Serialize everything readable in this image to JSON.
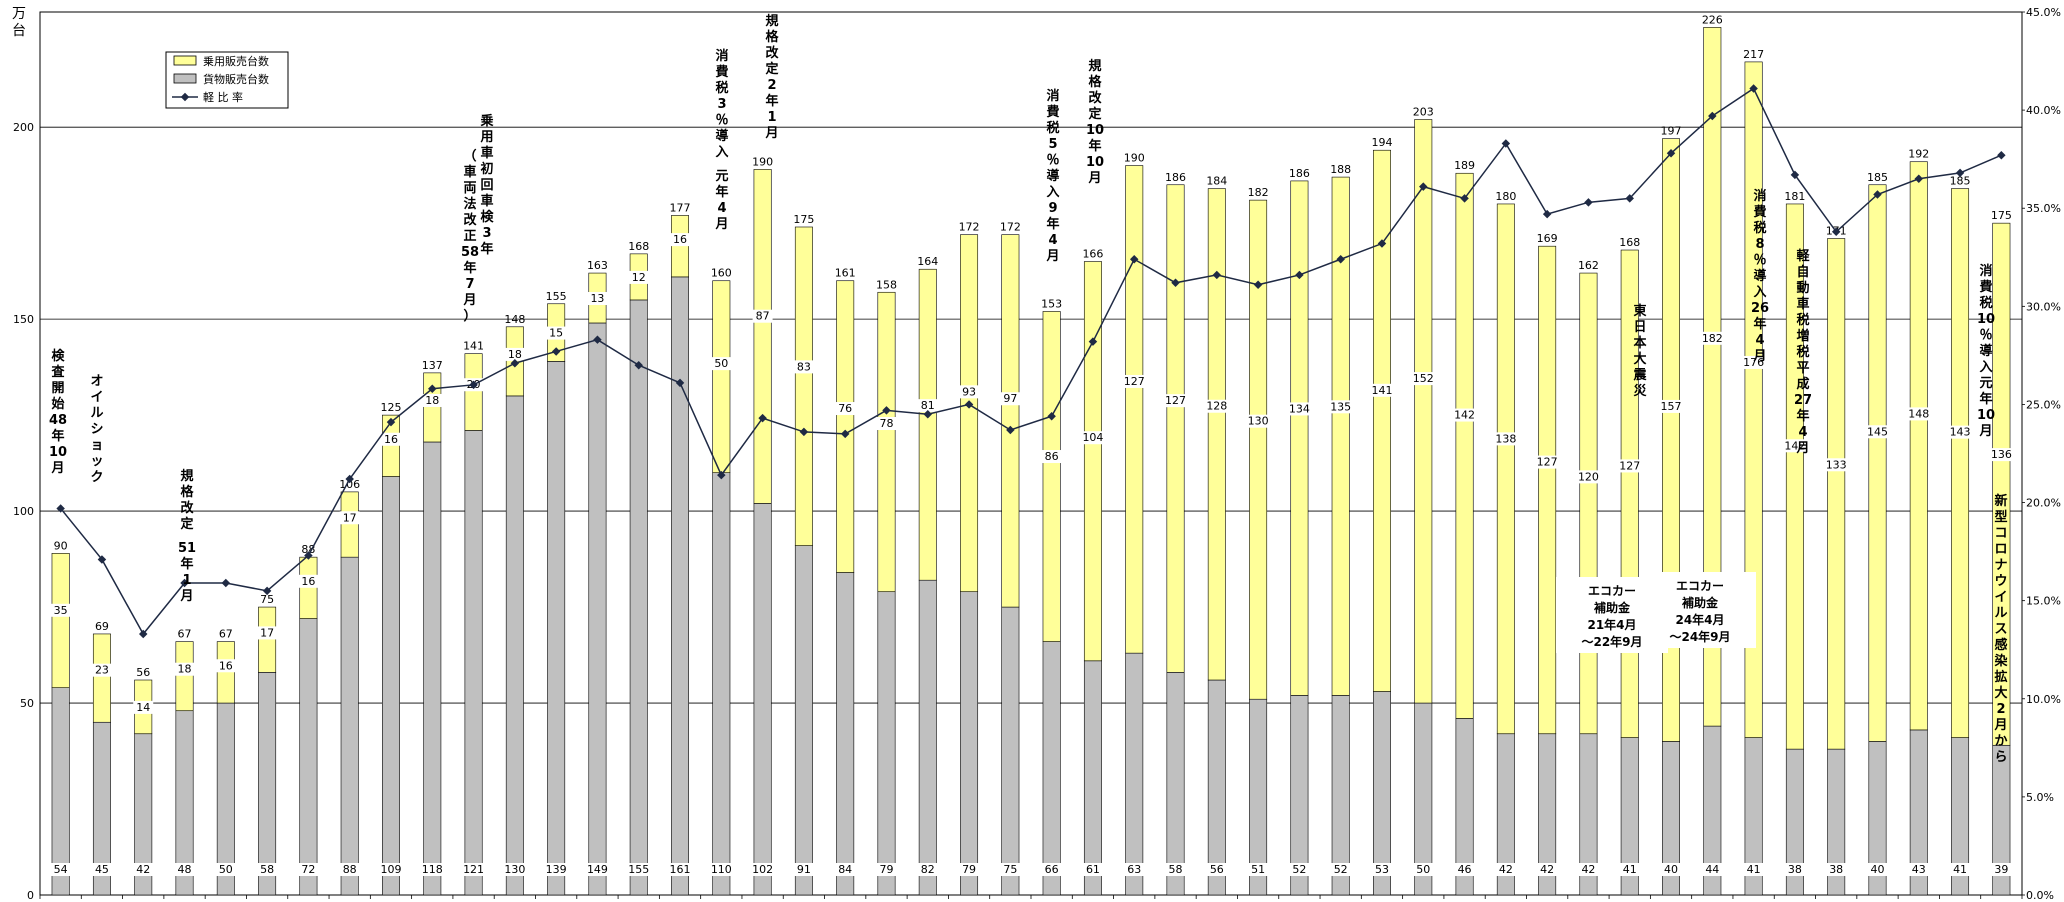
{
  "chart_data": {
    "type": "bar",
    "stacked": true,
    "unit_label": "万台",
    "ylim": [
      0,
      230
    ],
    "y_ticks": [
      0,
      50,
      100,
      150,
      200
    ],
    "y2lim": [
      0,
      45
    ],
    "y2_ticks": [
      "0.0%",
      "5.0%",
      "10.0%",
      "15.0%",
      "20.0%",
      "25.0%",
      "30.0%",
      "35.0%",
      "40.0%",
      "45.0%"
    ],
    "grid": true,
    "legend_position": "top-left",
    "colors": {
      "passenger": "#ffff99",
      "cargo": "#c0c0c0",
      "ratio_line": "#1f2a44"
    },
    "series": [
      {
        "name": "乗用販売台数",
        "values": [
          35,
          23,
          14,
          18,
          16,
          17,
          16,
          17,
          16,
          18,
          20,
          18,
          15,
          13,
          12,
          16,
          50,
          87,
          83,
          76,
          78,
          81,
          93,
          97,
          86,
          104,
          127,
          127,
          128,
          130,
          134,
          135,
          141,
          152,
          142,
          138,
          127,
          120,
          127,
          157,
          182,
          176,
          142,
          133,
          145,
          148,
          143,
          136
        ]
      },
      {
        "name": "貨物販売台数",
        "values": [
          54,
          45,
          42,
          48,
          50,
          58,
          72,
          88,
          109,
          118,
          121,
          130,
          139,
          149,
          155,
          161,
          110,
          102,
          91,
          84,
          79,
          82,
          79,
          75,
          66,
          61,
          63,
          58,
          56,
          51,
          52,
          52,
          53,
          50,
          46,
          42,
          42,
          42,
          41,
          40,
          44,
          41,
          38,
          38,
          40,
          43,
          41,
          39
        ]
      },
      {
        "name": "軽 比 率",
        "type": "line",
        "axis": "right",
        "values": [
          19.7,
          17.1,
          13.3,
          15.9,
          15.9,
          15.5,
          17.3,
          21.2,
          24.1,
          25.8,
          26.0,
          27.1,
          27.7,
          28.3,
          27.0,
          26.1,
          21.4,
          24.3,
          23.6,
          23.5,
          24.7,
          24.5,
          25.0,
          23.7,
          24.4,
          28.2,
          32.4,
          31.2,
          31.6,
          31.1,
          31.6,
          32.4,
          33.2,
          36.1,
          35.5,
          38.3,
          34.7,
          35.3,
          35.5,
          37.8,
          39.7,
          41.1,
          36.7,
          33.8,
          35.7,
          36.5,
          36.8,
          37.7
        ]
      }
    ],
    "totals": [
      90,
      69,
      56,
      67,
      67,
      75,
      88,
      106,
      125,
      137,
      141,
      148,
      155,
      163,
      168,
      177,
      160,
      190,
      175,
      161,
      158,
      164,
      172,
      172,
      153,
      166,
      190,
      186,
      184,
      182,
      186,
      188,
      194,
      203,
      189,
      180,
      169,
      162,
      168,
      197,
      226,
      217,
      181,
      171,
      185,
      192,
      185,
      175
    ],
    "annotations": [
      {
        "idx": 0,
        "lines": [
          "検",
          "査",
          "開",
          "始",
          "48",
          "年",
          "10",
          "月"
        ]
      },
      {
        "idx": 1,
        "lines": [
          "オ",
          "イ",
          "ル",
          "シ",
          "ョ",
          "ッ",
          "ク"
        ]
      },
      {
        "idx": 3,
        "lines": [
          "規",
          "格",
          "改",
          "定",
          "",
          "51",
          "年",
          "1",
          "月"
        ]
      },
      {
        "idx": 10,
        "lines": [
          "乗",
          "用",
          "車",
          "初",
          "回",
          "車",
          "検",
          "3",
          "年"
        ]
      },
      {
        "idx": 9,
        "lines": [
          "（",
          "車",
          "両",
          "法",
          "改",
          "正",
          "58",
          "年",
          "7",
          "月",
          "）"
        ]
      },
      {
        "idx": 16,
        "lines": [
          "消",
          "費",
          "税",
          "3",
          "％",
          "導",
          "入",
          "",
          "元",
          "年",
          "4",
          "月"
        ]
      },
      {
        "idx": 17,
        "lines": [
          "規",
          "格",
          "改",
          "定",
          "2",
          "年",
          "1",
          "月"
        ]
      },
      {
        "idx": 24,
        "lines": [
          "消",
          "費",
          "税",
          "5",
          "％",
          "導",
          "入",
          "9",
          "年",
          "4",
          "月"
        ]
      },
      {
        "idx": 25,
        "lines": [
          "規",
          "格",
          "改",
          "定",
          "10",
          "年",
          "10",
          "月"
        ]
      },
      {
        "idx": 38,
        "lines": [
          "東",
          "日",
          "本",
          "大",
          "震",
          "災"
        ]
      },
      {
        "idx": 41,
        "lines": [
          "消",
          "費",
          "税",
          "8",
          "％",
          "導",
          "入",
          "26",
          "年",
          "4",
          "月"
        ]
      },
      {
        "idx": 42,
        "lines": [
          "軽",
          "自",
          "動",
          "車",
          "税",
          "増",
          "税",
          "平",
          "成",
          "27",
          "年",
          "4",
          "月"
        ]
      },
      {
        "idx": 46,
        "lines": [
          "消",
          "費",
          "税",
          "10",
          "％",
          "導",
          "入",
          "元",
          "年",
          "10",
          "月"
        ]
      },
      {
        "idx": 47,
        "lines": [
          "新",
          "型",
          "コ",
          "ロ",
          "ナ",
          "ウ",
          "イ",
          "ル",
          "ス",
          "感",
          "染",
          "拡",
          "大",
          "2",
          "月",
          "か",
          "ら"
        ]
      }
    ],
    "notes": [
      {
        "idx": 36,
        "lines": [
          "エコカー",
          "補助金",
          "21年4月",
          "～22年9月"
        ]
      },
      {
        "idx": 39,
        "lines": [
          "エコカー",
          "補助金",
          "24年4月",
          "～24年9月"
        ]
      }
    ]
  }
}
